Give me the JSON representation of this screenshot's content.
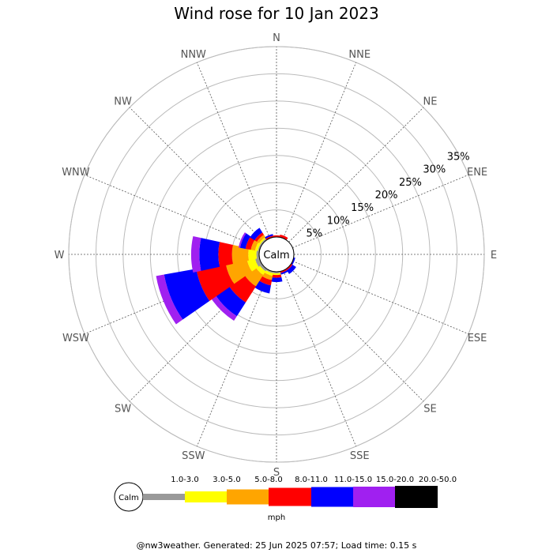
{
  "chart_data": {
    "type": "wind-rose",
    "title": "Wind rose for 10 Jan 2023",
    "directions": [
      "N",
      "NNE",
      "NE",
      "ENE",
      "E",
      "ESE",
      "SE",
      "SSE",
      "S",
      "SSW",
      "SW",
      "WSW",
      "W",
      "WNW",
      "NW",
      "NNW"
    ],
    "rings": [
      "5%",
      "10%",
      "15%",
      "20%",
      "25%",
      "30%",
      "35%"
    ],
    "ring_max": 35,
    "calm_label": "Calm",
    "units": "mph",
    "speed_bins": [
      {
        "range": "",
        "color": "#999999"
      },
      {
        "range": "1.0-3.0",
        "color": "#ffff00"
      },
      {
        "range": "3.0-5.0",
        "color": "#ffa500"
      },
      {
        "range": "5.0-8.0",
        "color": "#ff0000"
      },
      {
        "range": "8.0-11.0",
        "color": "#0000ff"
      },
      {
        "range": "11.0-15.0",
        "color": "#a020f0"
      },
      {
        "range": "15.0-20.0",
        "color": "#000000"
      },
      {
        "range": "20.0-50.0",
        "color": ""
      }
    ],
    "series": [
      {
        "direction": "N",
        "values": [
          0,
          0,
          0,
          0.3,
          0,
          0,
          0
        ]
      },
      {
        "direction": "NNE",
        "values": [
          0,
          0,
          0,
          0.5,
          0,
          0,
          0
        ]
      },
      {
        "direction": "NE",
        "values": [
          0,
          0,
          0,
          0,
          0,
          0,
          0
        ]
      },
      {
        "direction": "ENE",
        "values": [
          0,
          0,
          0,
          0,
          0,
          0,
          0
        ]
      },
      {
        "direction": "E",
        "values": [
          0,
          0,
          0,
          0,
          0,
          0,
          0
        ]
      },
      {
        "direction": "ESE",
        "values": [
          0,
          0,
          0,
          0,
          0.3,
          0,
          0
        ]
      },
      {
        "direction": "SE",
        "values": [
          0,
          0,
          0,
          0.3,
          0.8,
          0,
          0
        ]
      },
      {
        "direction": "SSE",
        "values": [
          0,
          0,
          0,
          0.3,
          0.3,
          0,
          0
        ]
      },
      {
        "direction": "S",
        "values": [
          0.3,
          0.3,
          0,
          0.5,
          0.8,
          0,
          0
        ]
      },
      {
        "direction": "SSW",
        "values": [
          0.3,
          0.5,
          0.8,
          1.0,
          1.5,
          0,
          0
        ]
      },
      {
        "direction": "SW",
        "values": [
          0.5,
          0.8,
          2.5,
          3.5,
          3.0,
          1.0,
          0
        ]
      },
      {
        "direction": "WSW",
        "values": [
          0.8,
          1.5,
          4.0,
          5.5,
          6.0,
          1.5,
          0
        ]
      },
      {
        "direction": "W",
        "values": [
          0.5,
          1.5,
          3.0,
          2.5,
          3.5,
          1.5,
          0
        ]
      },
      {
        "direction": "WNW",
        "values": [
          0.3,
          0.5,
          0.8,
          1.0,
          1.0,
          0.3,
          0
        ]
      },
      {
        "direction": "NW",
        "values": [
          0.3,
          0.3,
          0.5,
          0.5,
          1.0,
          0,
          0
        ]
      },
      {
        "direction": "NNW",
        "values": [
          0,
          0,
          0,
          0.3,
          0.3,
          0,
          0
        ]
      }
    ]
  },
  "footer": "@nw3weather. Generated: 25 Jun 2025 07:57; Load time: 0.15 s"
}
